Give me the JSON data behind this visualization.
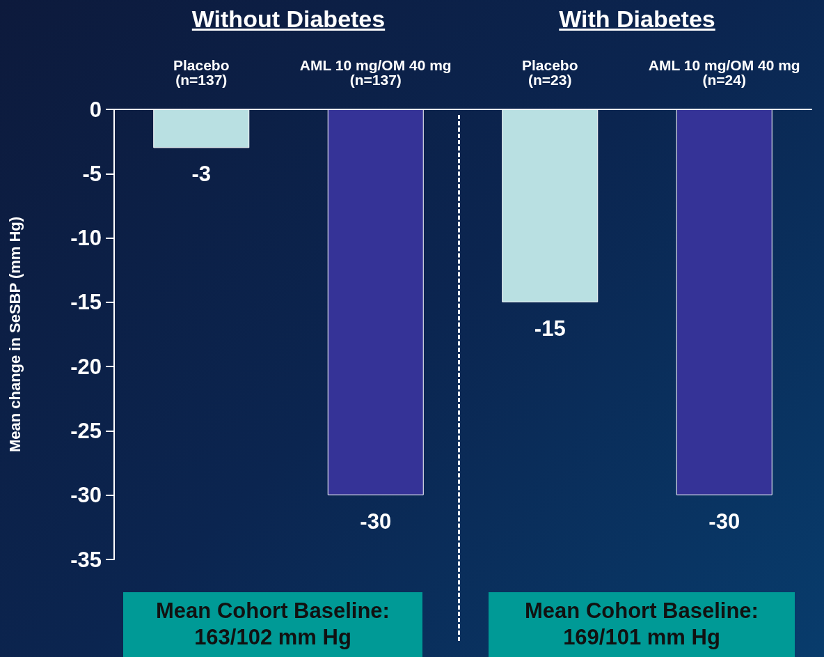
{
  "chart_data": {
    "type": "bar",
    "ylabel": "Mean change in SeSBP (mm Hg)",
    "categories": [
      "Placebo\n(n=137)",
      "AML 10 mg/OM 40 mg\n(n=137)",
      "Placebo\n(n=23)",
      "AML 10 mg/OM 40 mg\n(n=24)"
    ],
    "values": [
      -3,
      -30,
      -15,
      -30
    ],
    "colors": [
      "#b9e0e2",
      "#353397",
      "#b9e0e2",
      "#353397"
    ],
    "ylim": [
      -35,
      0
    ],
    "yticks": [
      0,
      -5,
      -10,
      -15,
      -20,
      -25,
      -30,
      -35
    ],
    "data_labels": true,
    "annotations": [
      "Without Diabetes",
      "With Diabetes",
      "Mean Cohort Baseline:\n163/102 mm Hg",
      "Mean Cohort Baseline:\n169/101 mm Hg"
    ]
  }
}
